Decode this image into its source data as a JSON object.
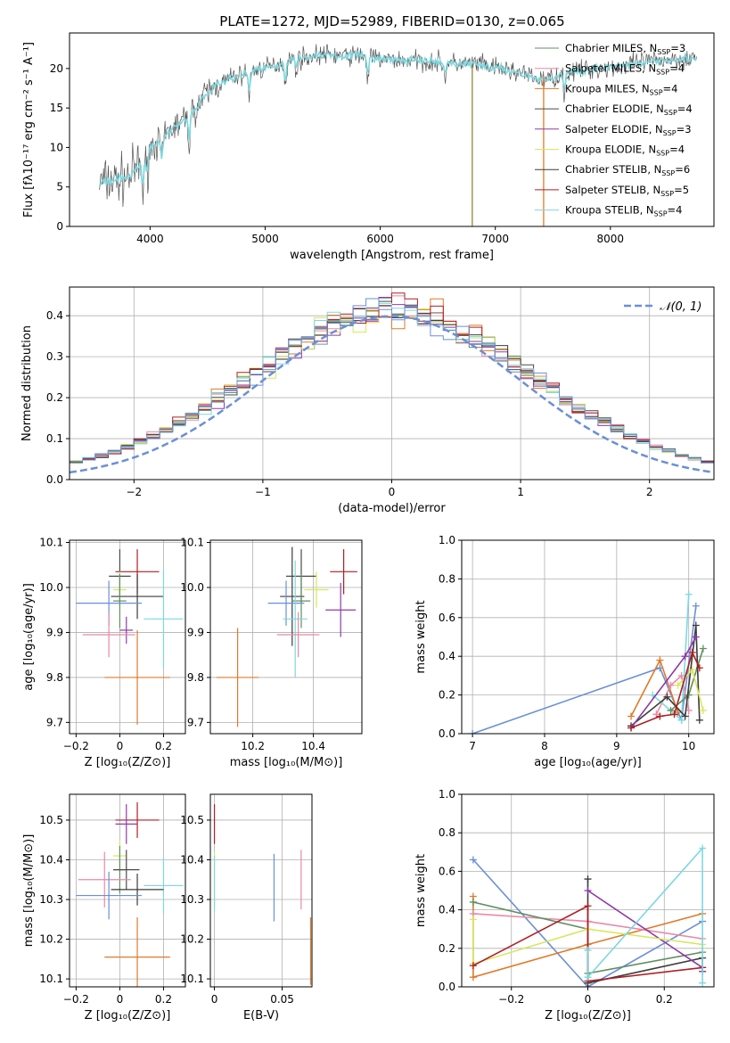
{
  "title": "PLATE=1272, MJD=52989, FIBERID=0130, z=0.065",
  "colors": {
    "Chabrier MILES": "#5f8f5f",
    "Salpeter MILES": "#e88aa8",
    "Kroupa MILES": "#e07a28",
    "Chabrier ELODIE": "#4b4b4b",
    "Salpeter ELODIE": "#8e3aa8",
    "Kroupa ELODIE": "#d6e85c",
    "Chabrier STELIB": "#3c3c3c",
    "Salpeter STELIB": "#b01e24",
    "Kroupa STELIB": "#7dd8df",
    "fit": "#6a8fd8"
  },
  "chart_data": [
    {
      "id": "spectrum",
      "type": "line",
      "xlabel": "wavelength [Angstrom, rest frame]",
      "ylabel": "Flux [fλ10⁻¹⁷ erg cm⁻² s⁻¹ A⁻¹]",
      "xlim": [
        3300,
        8900
      ],
      "ylim": [
        0,
        24.5
      ],
      "xticks": [
        4000,
        5000,
        6000,
        7000,
        8000
      ],
      "yticks": [
        0,
        5,
        10,
        15,
        20
      ],
      "anchors": {
        "x": [
          3550,
          3700,
          3800,
          3900,
          4000,
          4100,
          4200,
          4300,
          4400,
          4500,
          4600,
          4700,
          4800,
          4900,
          5000,
          5100,
          5200,
          5300,
          5400,
          5500,
          5600,
          5700,
          5800,
          5900,
          6000,
          6100,
          6200,
          6300,
          6400,
          6500,
          6600,
          6700,
          6800,
          6900,
          7000,
          7100,
          7200,
          7300,
          7400,
          7500,
          7600,
          7700,
          7800,
          7900,
          8000,
          8100,
          8200,
          8300,
          8400,
          8500,
          8600,
          8700,
          8750
        ],
        "y": [
          5.5,
          5.8,
          6.2,
          7.5,
          10,
          11,
          12.5,
          13.5,
          15,
          17,
          18,
          18.8,
          19.2,
          19.8,
          20,
          20.5,
          21,
          21.3,
          21.5,
          21.8,
          21.7,
          21.6,
          21.7,
          21.5,
          21.2,
          21.1,
          21,
          21,
          20.9,
          20.8,
          20.7,
          20.6,
          20.6,
          20.4,
          20,
          19.8,
          19.5,
          19,
          18.5,
          18.8,
          19.4,
          19.6,
          19.9,
          20,
          20.2,
          20.2,
          20.6,
          20.8,
          21,
          21.2,
          21.2,
          21.3,
          21.3
        ]
      },
      "drops": [
        6800,
        7420
      ],
      "legend": [
        {
          "label": "Chabrier MILES, N",
          "sub": "SSP",
          "n": "=3",
          "key": "Chabrier MILES"
        },
        {
          "label": "Salpeter MILES, N",
          "sub": "SSP",
          "n": "=4",
          "key": "Salpeter MILES"
        },
        {
          "label": "Kroupa MILES, N",
          "sub": "SSP",
          "n": "=4",
          "key": "Kroupa MILES"
        },
        {
          "label": "Chabrier ELODIE, N",
          "sub": "SSP",
          "n": "=4",
          "key": "Chabrier ELODIE"
        },
        {
          "label": "Salpeter ELODIE, N",
          "sub": "SSP",
          "n": "=3",
          "key": "Salpeter ELODIE"
        },
        {
          "label": "Kroupa ELODIE, N",
          "sub": "SSP",
          "n": "=4",
          "key": "Kroupa ELODIE"
        },
        {
          "label": "Chabrier STELIB, N",
          "sub": "SSP",
          "n": "=6",
          "key": "Chabrier STELIB"
        },
        {
          "label": "Salpeter STELIB, N",
          "sub": "SSP",
          "n": "=5",
          "key": "Salpeter STELIB"
        },
        {
          "label": "Kroupa STELIB, N",
          "sub": "SSP",
          "n": "=4",
          "key": "Kroupa STELIB"
        }
      ]
    },
    {
      "id": "residuals",
      "type": "line",
      "xlabel": "(data-model)/error",
      "ylabel": "Normed distribution",
      "xlim": [
        -2.5,
        2.5
      ],
      "ylim": [
        0,
        0.47
      ],
      "xticks": [
        -2,
        -1,
        0,
        1,
        2
      ],
      "yticks": [
        0.0,
        0.1,
        0.2,
        0.3,
        0.4
      ],
      "grid": true,
      "bin_width": 0.1,
      "legend": [
        {
          "label": "𝒩(0, 1)",
          "style": "dashed"
        }
      ]
    },
    {
      "id": "age_vs_Z",
      "type": "scatter",
      "xlabel": "Z [log₁₀(Z/Z⊙)]",
      "ylabel": "age  [log₁₀(age/yr)]",
      "xlim": [
        -0.23,
        0.3
      ],
      "ylim": [
        9.675,
        10.105
      ],
      "xticks": [
        -0.2,
        0.0,
        0.2
      ],
      "yticks": [
        9.7,
        9.8,
        9.9,
        10.0,
        10.1
      ],
      "grid": true,
      "points": [
        {
          "key": "Salpeter STELIB",
          "x": 0.08,
          "xerr": 0.1,
          "y": 10.035,
          "yerr": 0.05
        },
        {
          "key": "Chabrier ELODIE",
          "x": 0.0,
          "xerr": 0.05,
          "y": 10.025,
          "yerr": 0.06
        },
        {
          "key": "Kroupa ELODIE",
          "x": 0.0,
          "xerr": 0.03,
          "y": 9.995,
          "yerr": 0.04
        },
        {
          "key": "Chabrier STELIB",
          "x": 0.08,
          "xerr": 0.12,
          "y": 9.98,
          "yerr": 0.05
        },
        {
          "key": "Chabrier MILES",
          "x": 0.0,
          "xerr": 0.03,
          "y": 9.97,
          "yerr": 0.06
        },
        {
          "key": "fit",
          "x": -0.05,
          "xerr": 0.15,
          "y": 9.965,
          "yerr": 0.05
        },
        {
          "key": "Kroupa STELIB",
          "x": 0.2,
          "xerr": 0.09,
          "y": 9.93,
          "yerr": 0.11
        },
        {
          "key": "Salpeter ELODIE",
          "x": 0.03,
          "xerr": 0.03,
          "y": 9.905,
          "yerr": 0.03
        },
        {
          "key": "Salpeter MILES",
          "x": -0.05,
          "xerr": 0.12,
          "y": 9.895,
          "yerr": 0.05
        },
        {
          "key": "Kroupa MILES",
          "x": 0.08,
          "xerr": 0.15,
          "y": 9.8,
          "yerr": 0.105
        }
      ]
    },
    {
      "id": "age_vs_mass",
      "type": "scatter",
      "xlabel": "mass [log₁₀(M/M⊙)]",
      "ylabel": "",
      "xlim": [
        10.06,
        10.56
      ],
      "ylim": [
        9.675,
        10.105
      ],
      "xticks": [
        10.2,
        10.4
      ],
      "yticks": [
        9.7,
        9.8,
        9.9,
        10.0,
        10.1
      ],
      "grid": true,
      "points": [
        {
          "key": "Salpeter STELIB",
          "x": 10.5,
          "xerr": 0.045,
          "y": 10.035,
          "yerr": 0.05
        },
        {
          "key": "Chabrier ELODIE",
          "x": 10.36,
          "xerr": 0.05,
          "y": 10.025,
          "yerr": 0.06
        },
        {
          "key": "Kroupa ELODIE",
          "x": 10.41,
          "xerr": 0.04,
          "y": 9.995,
          "yerr": 0.04
        },
        {
          "key": "Chabrier STELIB",
          "x": 10.33,
          "xerr": 0.04,
          "y": 9.98,
          "yerr": 0.11
        },
        {
          "key": "Chabrier MILES",
          "x": 10.36,
          "xerr": 0.03,
          "y": 9.97,
          "yerr": 0.06
        },
        {
          "key": "fit",
          "x": 10.31,
          "xerr": 0.06,
          "y": 9.965,
          "yerr": 0.05
        },
        {
          "key": "Salpeter ELODIE",
          "x": 10.49,
          "xerr": 0.05,
          "y": 9.95,
          "yerr": 0.06
        },
        {
          "key": "Kroupa STELIB",
          "x": 10.34,
          "xerr": 0.04,
          "y": 9.93,
          "yerr": 0.13
        },
        {
          "key": "Salpeter MILES",
          "x": 10.35,
          "xerr": 0.07,
          "y": 9.895,
          "yerr": 0.05
        },
        {
          "key": "Kroupa MILES",
          "x": 10.15,
          "xerr": 0.07,
          "y": 9.8,
          "yerr": 0.11
        }
      ]
    },
    {
      "id": "massweight_vs_age",
      "type": "line",
      "xlabel": "age  [log₁₀(age/yr)]",
      "ylabel": "mass weight",
      "xlim": [
        6.85,
        10.35
      ],
      "ylim": [
        0,
        1.0
      ],
      "xticks": [
        7,
        8,
        9,
        10
      ],
      "yticks": [
        0.0,
        0.2,
        0.4,
        0.6,
        0.8,
        1.0
      ],
      "grid": true,
      "series": [
        {
          "key": "fit",
          "x": [
            7.0,
            9.6,
            9.9,
            10.1
          ],
          "y": [
            0.0,
            0.34,
            0.07,
            0.66
          ]
        },
        {
          "key": "Kroupa MILES",
          "x": [
            9.2,
            9.6,
            9.85
          ],
          "y": [
            0.09,
            0.38,
            0.11
          ]
        },
        {
          "key": "Salpeter MILES",
          "x": [
            9.55,
            9.75,
            9.9,
            10.0
          ],
          "y": [
            0.1,
            0.25,
            0.3,
            0.12
          ]
        },
        {
          "key": "Kroupa STELIB",
          "x": [
            9.5,
            9.9,
            10.0
          ],
          "y": [
            0.2,
            0.07,
            0.72
          ]
        },
        {
          "key": "Chabrier MILES",
          "x": [
            9.75,
            10.0,
            10.2
          ],
          "y": [
            0.12,
            0.2,
            0.44
          ]
        },
        {
          "key": "Chabrier STELIB",
          "x": [
            9.2,
            9.7,
            9.95,
            10.1,
            10.15
          ],
          "y": [
            0.04,
            0.19,
            0.09,
            0.56,
            0.07
          ]
        },
        {
          "key": "Salpeter ELODIE",
          "x": [
            9.2,
            9.95,
            10.1
          ],
          "y": [
            0.03,
            0.4,
            0.5
          ]
        },
        {
          "key": "Kroupa ELODIE",
          "x": [
            9.85,
            10.05,
            10.2
          ],
          "y": [
            0.25,
            0.33,
            0.12
          ]
        },
        {
          "key": "Salpeter STELIB",
          "x": [
            9.2,
            9.6,
            9.8,
            10.05,
            10.15
          ],
          "y": [
            0.03,
            0.09,
            0.1,
            0.42,
            0.34
          ]
        }
      ]
    },
    {
      "id": "mass_vs_Z",
      "type": "scatter",
      "xlabel": "Z [log₁₀(Z/Z⊙)]",
      "ylabel": "mass [log₁₀(M/M⊙)]",
      "xlim": [
        -0.23,
        0.3
      ],
      "ylim": [
        10.08,
        10.565
      ],
      "xticks": [
        -0.2,
        0.0,
        0.2
      ],
      "yticks": [
        10.1,
        10.2,
        10.3,
        10.4,
        10.5
      ],
      "grid": true,
      "points": [
        {
          "key": "Salpeter STELIB",
          "x": 0.08,
          "xerr": 0.1,
          "y": 10.5,
          "yerr": 0.045
        },
        {
          "key": "Salpeter ELODIE",
          "x": 0.03,
          "xerr": 0.05,
          "y": 10.49,
          "yerr": 0.05
        },
        {
          "key": "Kroupa ELODIE",
          "x": 0.0,
          "xerr": 0.03,
          "y": 10.41,
          "yerr": 0.04
        },
        {
          "key": "Chabrier MILES",
          "x": 0.0,
          "xerr": 0.03,
          "y": 10.375,
          "yerr": 0.06
        },
        {
          "key": "Chabrier ELODIE",
          "x": 0.03,
          "xerr": 0.06,
          "y": 10.375,
          "yerr": 0.05
        },
        {
          "key": "Salpeter MILES",
          "x": -0.07,
          "xerr": 0.12,
          "y": 10.35,
          "yerr": 0.07
        },
        {
          "key": "Kroupa STELIB",
          "x": 0.2,
          "xerr": 0.09,
          "y": 10.335,
          "yerr": 0.07
        },
        {
          "key": "Chabrier STELIB",
          "x": 0.08,
          "xerr": 0.12,
          "y": 10.325,
          "yerr": 0.04
        },
        {
          "key": "fit",
          "x": -0.05,
          "xerr": 0.15,
          "y": 10.31,
          "yerr": 0.06
        },
        {
          "key": "Kroupa MILES",
          "x": 0.08,
          "xerr": 0.15,
          "y": 10.155,
          "yerr": 0.1
        }
      ]
    },
    {
      "id": "mass_vs_EBV",
      "type": "scatter",
      "xlabel": "E(B-V)",
      "ylabel": "",
      "xlim": [
        -0.003,
        0.072
      ],
      "ylim": [
        10.08,
        10.565
      ],
      "xticks": [
        0.0,
        0.05
      ],
      "yticks": [
        10.1,
        10.2,
        10.3,
        10.4,
        10.5
      ],
      "grid": true,
      "points": [
        {
          "key": "Salpeter STELIB",
          "x": 0.0,
          "xerr": 0,
          "y": 10.49,
          "yerr": 0.05
        },
        {
          "key": "Kroupa ELODIE",
          "x": 0.0,
          "xerr": 0,
          "y": 10.35,
          "yerr": 0.07
        },
        {
          "key": "Kroupa STELIB",
          "x": 0.0,
          "xerr": 0,
          "y": 10.34,
          "yerr": 0.07
        },
        {
          "key": "fit",
          "x": 0.044,
          "xerr": 0,
          "y": 10.33,
          "yerr": 0.085
        },
        {
          "key": "Salpeter MILES",
          "x": 0.064,
          "xerr": 0,
          "y": 10.35,
          "yerr": 0.075
        },
        {
          "key": "Kroupa MILES",
          "x": 0.071,
          "xerr": 0,
          "y": 10.17,
          "yerr": 0.085
        }
      ]
    },
    {
      "id": "massweight_vs_Z",
      "type": "line",
      "xlabel": "Z [log₁₀(Z/Z⊙)]",
      "ylabel": "mass weight",
      "xlim": [
        -0.33,
        0.33
      ],
      "ylim": [
        0,
        1.0
      ],
      "xticks": [
        -0.2,
        0.0,
        0.2
      ],
      "yticks": [
        0.0,
        0.2,
        0.4,
        0.6,
        0.8,
        1.0
      ],
      "grid": true,
      "series": [
        {
          "key": "fit",
          "x": [
            -0.3,
            0.0,
            0.3
          ],
          "y": [
            0.66,
            0.0,
            0.34
          ]
        },
        {
          "key": "Kroupa MILES",
          "x": [
            -0.3,
            -0.3,
            0.0,
            0.3
          ],
          "y": [
            0.47,
            0.05,
            0.22,
            0.38
          ]
        },
        {
          "key": "Salpeter MILES",
          "x": [
            -0.3,
            0.0,
            0.3
          ],
          "y": [
            0.38,
            0.34,
            0.25
          ]
        },
        {
          "key": "Chabrier MILES",
          "x": [
            -0.3,
            0.0,
            0.0,
            0.3
          ],
          "y": [
            0.44,
            0.3,
            0.07,
            0.18
          ]
        },
        {
          "key": "Chabrier STELIB",
          "x": [
            0.0,
            0.0,
            0.3,
            0.3
          ],
          "y": [
            0.56,
            0.02,
            0.15,
            0.08
          ]
        },
        {
          "key": "Salpeter ELODIE",
          "x": [
            0.0,
            0.3,
            0.3
          ],
          "y": [
            0.5,
            0.1,
            0.08
          ]
        },
        {
          "key": "Kroupa ELODIE",
          "x": [
            -0.3,
            -0.3,
            0.0,
            0.3
          ],
          "y": [
            0.35,
            0.12,
            0.3,
            0.22
          ]
        },
        {
          "key": "Salpeter STELIB",
          "x": [
            -0.3,
            0.0,
            0.0,
            0.3
          ],
          "y": [
            0.11,
            0.42,
            0.03,
            0.1
          ]
        },
        {
          "key": "Kroupa STELIB",
          "x": [
            0.0,
            0.0,
            0.3,
            0.3
          ],
          "y": [
            0.19,
            0.05,
            0.72,
            0.02
          ]
        }
      ]
    }
  ]
}
